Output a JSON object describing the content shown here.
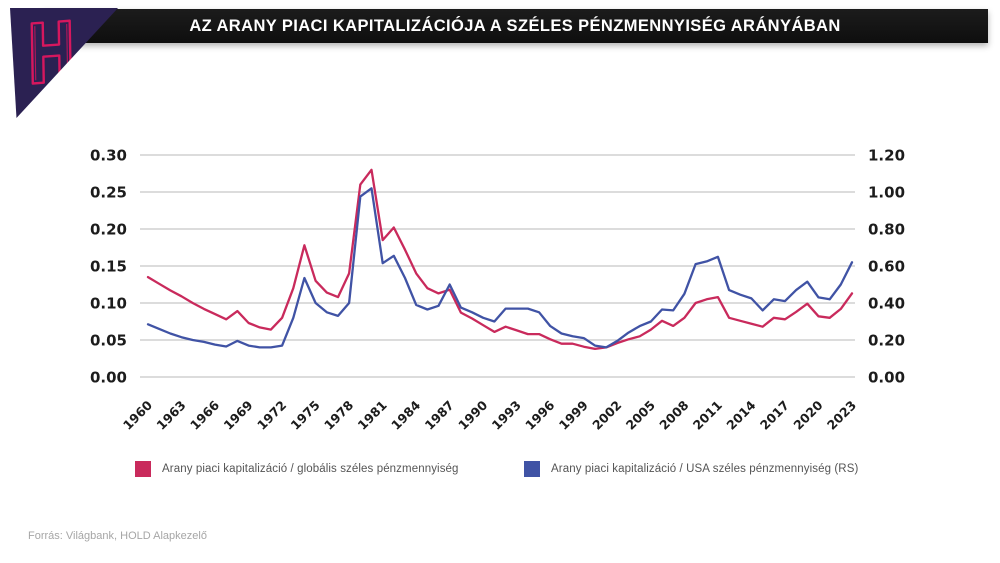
{
  "header": {
    "title": "AZ ARANY PIACI KAPITALIZÁCIÓJA A SZÉLES PÉNZMENNYISÉG ARÁNYÁBAN",
    "logo_letter": "H",
    "bar_color": "#121212",
    "triangle_color": "#2b2152",
    "logo_pink": "#d6175e"
  },
  "source_note": "Forrás: Világbank, HOLD Alapkezelő",
  "legend": [
    {
      "label": "Arany piaci kapitalizáció / globális széles pénzmennyiség",
      "color": "#c92a5c"
    },
    {
      "label": "Arany piaci kapitalizáció / USA széles pénzmennyiség (RS)",
      "color": "#4053a5"
    }
  ],
  "chart_data": {
    "type": "line",
    "title": "AZ ARANY PIACI KAPITALIZÁCIÓJA A SZÉLES PÉNZMENNYISÉG ARÁNYÁBAN",
    "grid": true,
    "legend_position": "bottom",
    "x": [
      1960,
      1961,
      1962,
      1963,
      1964,
      1965,
      1966,
      1967,
      1968,
      1969,
      1970,
      1971,
      1972,
      1973,
      1974,
      1975,
      1976,
      1977,
      1978,
      1979,
      1980,
      1981,
      1982,
      1983,
      1984,
      1985,
      1986,
      1987,
      1988,
      1989,
      1990,
      1991,
      1992,
      1993,
      1994,
      1995,
      1996,
      1997,
      1998,
      1999,
      2000,
      2001,
      2002,
      2003,
      2004,
      2005,
      2006,
      2007,
      2008,
      2009,
      2010,
      2011,
      2012,
      2013,
      2014,
      2015,
      2016,
      2017,
      2018,
      2019,
      2020,
      2021,
      2022,
      2023
    ],
    "x_tick_labels": [
      "1960",
      "1963",
      "1966",
      "1969",
      "1972",
      "1975",
      "1978",
      "1981",
      "1984",
      "1987",
      "1990",
      "1993",
      "1996",
      "1999",
      "2002",
      "2005",
      "2008",
      "2011",
      "2014",
      "2017",
      "2020",
      "2023"
    ],
    "left_axis": {
      "min": 0,
      "max": 0.3,
      "ticks": [
        "0.00",
        "0.05",
        "0.10",
        "0.15",
        "0.20",
        "0.25",
        "0.30"
      ]
    },
    "right_axis": {
      "min": 0,
      "max": 1.2,
      "ticks": [
        "0.00",
        "0.20",
        "0.40",
        "0.60",
        "0.80",
        "1.00",
        "1.20"
      ]
    },
    "series": [
      {
        "name": "Arany piaci kapitalizáció / globális széles pénzmennyiség",
        "axis": "left",
        "color": "#c92a5c",
        "values": [
          0.135,
          0.126,
          0.117,
          0.109,
          0.1,
          0.092,
          0.085,
          0.078,
          0.089,
          0.073,
          0.067,
          0.064,
          0.08,
          0.12,
          0.178,
          0.13,
          0.114,
          0.108,
          0.14,
          0.26,
          0.28,
          0.185,
          0.202,
          0.172,
          0.14,
          0.12,
          0.113,
          0.118,
          0.087,
          0.079,
          0.07,
          0.061,
          0.068,
          0.063,
          0.058,
          0.058,
          0.051,
          0.045,
          0.045,
          0.041,
          0.038,
          0.04,
          0.046,
          0.051,
          0.055,
          0.064,
          0.076,
          0.069,
          0.08,
          0.1,
          0.105,
          0.108,
          0.08,
          0.076,
          0.072,
          0.068,
          0.08,
          0.078,
          0.088,
          0.099,
          0.082,
          0.08,
          0.092,
          0.113
        ]
      },
      {
        "name": "Arany piaci kapitalizáció / USA széles pénzmennyiség (RS)",
        "axis": "right",
        "color": "#4053a5",
        "values": [
          0.285,
          0.26,
          0.235,
          0.215,
          0.2,
          0.19,
          0.175,
          0.165,
          0.195,
          0.17,
          0.16,
          0.16,
          0.17,
          0.32,
          0.535,
          0.4,
          0.35,
          0.33,
          0.4,
          0.975,
          1.02,
          0.615,
          0.655,
          0.535,
          0.39,
          0.365,
          0.385,
          0.5,
          0.375,
          0.35,
          0.32,
          0.3,
          0.37,
          0.37,
          0.37,
          0.35,
          0.275,
          0.235,
          0.22,
          0.21,
          0.17,
          0.16,
          0.195,
          0.24,
          0.275,
          0.3,
          0.365,
          0.36,
          0.45,
          0.61,
          0.625,
          0.65,
          0.47,
          0.445,
          0.425,
          0.36,
          0.42,
          0.41,
          0.47,
          0.515,
          0.43,
          0.42,
          0.5,
          0.62
        ]
      }
    ]
  },
  "style": {
    "gridline_color": "#c8c8c8",
    "tick_label_color": "#1c1c1c",
    "legend_text_color": "#555555",
    "source_text_color": "#a6a6a6"
  }
}
